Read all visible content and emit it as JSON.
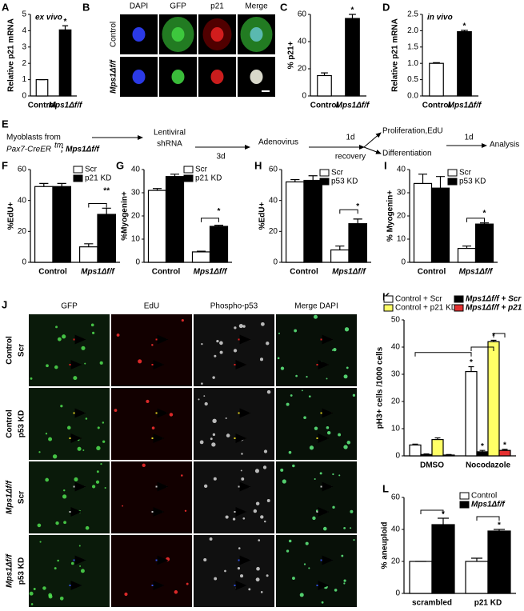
{
  "chart_data": [
    {
      "type": "bar",
      "panel": "A",
      "ylabel": "Relative p21 mRNA",
      "note": "ex vivo",
      "categories": [
        "Control",
        "Mps1Δf/f"
      ],
      "values": [
        1,
        4.05
      ],
      "errors": [
        0,
        0.25
      ],
      "colors": [
        "#ffffff",
        "#000000"
      ],
      "ylim": [
        0,
        5
      ],
      "yticks": [
        0,
        1,
        2,
        3,
        4,
        5
      ],
      "annotations": [
        "*"
      ]
    },
    {
      "type": "bar",
      "panel": "C",
      "ylabel": "% p21+",
      "categories": [
        "Control",
        "Mps1Δf/f"
      ],
      "values": [
        15,
        57
      ],
      "errors": [
        2,
        3
      ],
      "colors": [
        "#ffffff",
        "#000000"
      ],
      "ylim": [
        0,
        60
      ],
      "yticks": [
        0,
        20,
        40,
        60
      ],
      "annotations": [
        "*"
      ]
    },
    {
      "type": "bar",
      "panel": "D",
      "ylabel": "Relative p21 mRNA",
      "note": "in vivo",
      "categories": [
        "Control",
        "Mps1Δf/f"
      ],
      "values": [
        1.0,
        1.97
      ],
      "errors": [
        0.02,
        0.04
      ],
      "colors": [
        "#ffffff",
        "#000000"
      ],
      "ylim": [
        0,
        2.5
      ],
      "yticks": [
        {
          "value": 0,
          "label": "0.0"
        },
        {
          "value": 0.5,
          "label": "0.5"
        },
        {
          "value": 1,
          "label": "1.0"
        },
        {
          "value": 1.5,
          "label": "1.5"
        },
        {
          "value": 2,
          "label": "2.0"
        },
        {
          "value": 2.5,
          "label": "2.5"
        }
      ],
      "annotations": [
        "*"
      ]
    },
    {
      "type": "bar",
      "panel": "F",
      "ylabel": "%EdU+",
      "categories": [
        "Control",
        "Mps1Δf/f"
      ],
      "series": [
        {
          "name": "Scr",
          "color": "#ffffff",
          "values": [
            49,
            10
          ],
          "errors": [
            2,
            2
          ]
        },
        {
          "name": "p21 KD",
          "color": "#000000",
          "values": [
            49,
            31
          ],
          "errors": [
            2,
            4
          ]
        }
      ],
      "ylim": [
        0,
        60
      ],
      "yticks": [
        0,
        20,
        40,
        60
      ],
      "annotations": [
        "**"
      ]
    },
    {
      "type": "bar",
      "panel": "G",
      "ylabel": "%Myogenin+",
      "categories": [
        "Control",
        "Mps1Δf/f"
      ],
      "series": [
        {
          "name": "Scr",
          "color": "#ffffff",
          "values": [
            31,
            4.5
          ],
          "errors": [
            0.8,
            0.3
          ]
        },
        {
          "name": "p21 KD",
          "color": "#000000",
          "values": [
            37,
            15.5
          ],
          "errors": [
            1,
            0.5
          ]
        }
      ],
      "ylim": [
        0,
        40
      ],
      "yticks": [
        0,
        10,
        20,
        30,
        40
      ],
      "annotations": [
        "*"
      ]
    },
    {
      "type": "bar",
      "panel": "H",
      "ylabel": "%EdU+",
      "categories": [
        "Control",
        "Mps1Δf/f"
      ],
      "series": [
        {
          "name": "Scr",
          "color": "#ffffff",
          "values": [
            52,
            8
          ],
          "errors": [
            1.5,
            2.5
          ]
        },
        {
          "name": "p53 KD",
          "color": "#000000",
          "values": [
            53,
            25
          ],
          "errors": [
            3,
            3
          ]
        }
      ],
      "ylim": [
        0,
        60
      ],
      "yticks": [
        0,
        20,
        40,
        60
      ],
      "annotations": [
        "*"
      ]
    },
    {
      "type": "bar",
      "panel": "I",
      "ylabel": "% Myogenin+",
      "categories": [
        "Control",
        "Mps1Δf/f"
      ],
      "series": [
        {
          "name": "Scr",
          "color": "#ffffff",
          "values": [
            34,
            6
          ],
          "errors": [
            4,
            1
          ]
        },
        {
          "name": "p53 KD",
          "color": "#000000",
          "values": [
            32,
            16.5
          ],
          "errors": [
            5,
            0.5
          ]
        }
      ],
      "ylim": [
        0,
        40
      ],
      "yticks": [
        0,
        10,
        20,
        30,
        40
      ],
      "annotations": [
        "*"
      ]
    },
    {
      "type": "bar",
      "panel": "K",
      "ylabel": "pH3+ cells /1000 cells",
      "categories": [
        "DMSO",
        "Nocodazole"
      ],
      "series": [
        {
          "name": "Control + Scr",
          "color": "#ffffff",
          "values": [
            4,
            31
          ],
          "errors": [
            0.3,
            1.8
          ]
        },
        {
          "name": "Mps1Δf/f + Scr",
          "color": "#000000",
          "values": [
            0.5,
            1.5
          ],
          "errors": [
            0.2,
            0.5
          ]
        },
        {
          "name": "Control + p21 KD",
          "color": "#ffff66",
          "values": [
            6,
            42
          ],
          "errors": [
            0.6,
            0.5
          ]
        },
        {
          "name": "Mps1Δf/f + p21 KD",
          "color": "#e53030",
          "values": [
            0.3,
            2
          ],
          "errors": [
            0.2,
            0.4
          ]
        }
      ],
      "ylim": [
        0,
        50
      ],
      "yticks": [
        0,
        10,
        20,
        30,
        40,
        50
      ],
      "annotations": [
        "*",
        "*",
        "*",
        "*"
      ]
    },
    {
      "type": "bar",
      "panel": "L",
      "ylabel": "% aneuploid",
      "categories": [
        "scrambled",
        "p21 KD"
      ],
      "series": [
        {
          "name": "Control",
          "color": "#ffffff",
          "values": [
            20,
            20
          ],
          "errors": [
            0,
            2
          ]
        },
        {
          "name": "Mps1Δf/f",
          "color": "#000000",
          "values": [
            43,
            39
          ],
          "errors": [
            4,
            1
          ]
        }
      ],
      "ylim": [
        0,
        60
      ],
      "yticks": [
        0,
        20,
        40,
        60
      ],
      "annotations": [
        "*",
        "*"
      ]
    }
  ],
  "figure": {
    "B": {
      "panel": "B",
      "columns": [
        "DAPI",
        "GFP",
        "p21",
        "Merge"
      ],
      "rows": [
        "Control",
        "Mps1Δf/f"
      ]
    },
    "E": {
      "panel": "E",
      "source": [
        "Myoblasts from",
        "Pax7-CreER",
        "tm",
        "; Mps1Δf/f"
      ],
      "step1": [
        "Lentiviral",
        "shRNA"
      ],
      "wait1": "3d",
      "step2": "Adenovirus",
      "wait2": [
        "1d",
        "recovery"
      ],
      "branch1": "Proliferation,EdU",
      "branch2": "Differentiation",
      "wait3": "1d",
      "final": "Analysis"
    },
    "J": {
      "panel": "J",
      "columns": [
        "GFP",
        "EdU",
        "Phospho-p53",
        "Merge DAPI"
      ],
      "rows": [
        [
          "Control",
          "Scr"
        ],
        [
          "Control",
          "p53 KD"
        ],
        [
          "Mps1Δf/f",
          "Scr"
        ],
        [
          "Mps1Δf/f",
          "p53 KD"
        ]
      ]
    }
  }
}
